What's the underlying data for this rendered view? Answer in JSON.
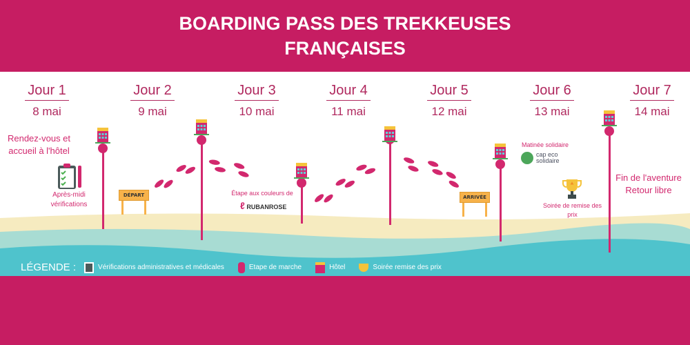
{
  "title_line1": "BOARDING PASS DES TREKKEUSES",
  "title_line2": "FRANÇAISES",
  "days": [
    {
      "jour": "Jour 1",
      "date": "8 mai"
    },
    {
      "jour": "Jour 2",
      "date": "9 mai"
    },
    {
      "jour": "Jour 3",
      "date": "10 mai"
    },
    {
      "jour": "Jour 4",
      "date": "11 mai"
    },
    {
      "jour": "Jour 5",
      "date": "12 mai"
    },
    {
      "jour": "Jour 6",
      "date": "13 mai"
    },
    {
      "jour": "Jour 7",
      "date": "14 mai"
    }
  ],
  "events": {
    "rdv": "Rendez-vous et accueil à l'hôtel",
    "verif": "Après-midi vérifications",
    "depart": "DÉPART",
    "ruban_intro": "Étape aux couleurs de",
    "ruban_logo": "RUBANROSE",
    "arrivee": "ARRIVÉE",
    "matinee": "Matinée solidaire",
    "cap_logo": "cap eco solidaire",
    "soiree": "Soirée de remise des prix",
    "fin": "Fin de l'aventure",
    "retour": "Retour libre"
  },
  "legend": {
    "title": "LÉGENDE :",
    "items": [
      {
        "icon": "clipboard-icon",
        "label": "Vérifications administratives et médicales"
      },
      {
        "icon": "footprints-icon",
        "label": "Etape de marche"
      },
      {
        "icon": "hotel-icon",
        "label": "Hôtel"
      },
      {
        "icon": "trophy-icon",
        "label": "Soirée remise des prix"
      }
    ]
  },
  "colors": {
    "brand": "#C61D62",
    "pink": "#D2286E",
    "sand": "#F6EBC0",
    "sea": "#4FC3CC"
  }
}
